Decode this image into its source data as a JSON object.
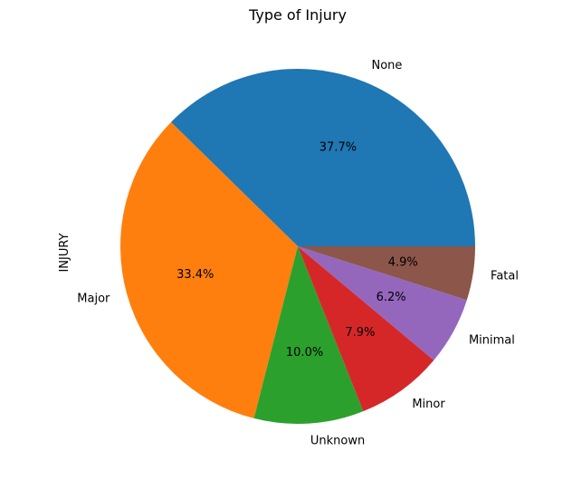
{
  "chart_data": {
    "type": "pie",
    "title": "Type of Injury",
    "ylabel": "INJURY",
    "categories": [
      "None",
      "Major",
      "Unknown",
      "Minor",
      "Minimal",
      "Fatal"
    ],
    "values": [
      37.7,
      33.4,
      10.0,
      7.9,
      6.2,
      4.9
    ],
    "value_labels": [
      "37.7%",
      "33.4%",
      "10.0%",
      "7.9%",
      "6.2%",
      "4.9%"
    ],
    "colors": [
      "#1f77b4",
      "#ff7f0e",
      "#2ca02c",
      "#d62728",
      "#9467bd",
      "#8c564b"
    ],
    "start_angle_deg": 0,
    "direction": "counterclockwise",
    "legend": "none"
  }
}
